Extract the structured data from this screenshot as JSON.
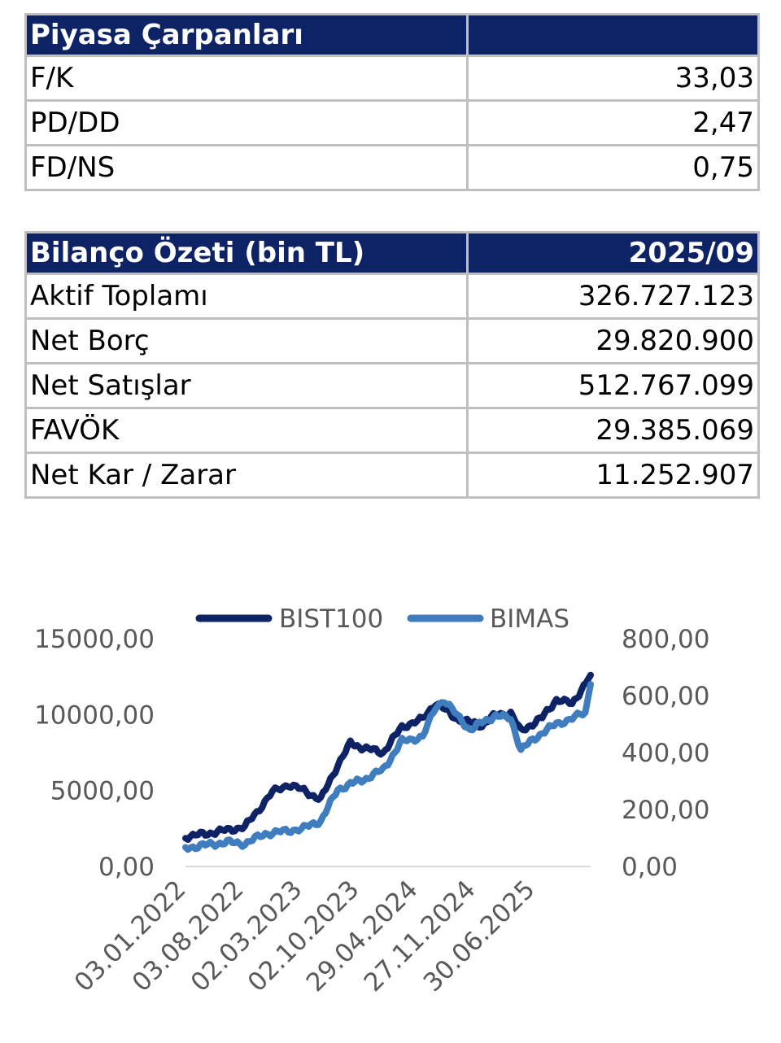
{
  "piyasa": {
    "title": "Piyasa Çarpanları",
    "rows": [
      {
        "label": "F/K",
        "value": "33,03"
      },
      {
        "label": "PD/DD",
        "value": "2,47"
      },
      {
        "label": "FD/NS",
        "value": "0,75"
      }
    ]
  },
  "bilanco": {
    "title": "Bilanço Özeti (bin TL)",
    "period": "2025/09",
    "rows": [
      {
        "label": "Aktif Toplamı",
        "value": "326.727.123"
      },
      {
        "label": "Net Borç",
        "value": "29.820.900"
      },
      {
        "label": "Net Satışlar",
        "value": "512.767.099"
      },
      {
        "label": "FAVÖK",
        "value": "29.385.069"
      },
      {
        "label": "Net Kar / Zarar",
        "value": "11.252.907"
      }
    ]
  },
  "chart_data": {
    "type": "line",
    "legend_position": "top",
    "grid": false,
    "x_ticks": [
      "03.01.2022",
      "03.08.2022",
      "02.03.2023",
      "02.10.2023",
      "29.04.2024",
      "27.11.2024",
      "30.06.2025"
    ],
    "y_left": {
      "ticks": [
        "0,00",
        "5000,00",
        "10000,00",
        "15000,00"
      ],
      "range": [
        0,
        15000
      ]
    },
    "y_right": {
      "ticks": [
        "0,00",
        "200,00",
        "400,00",
        "600,00",
        "800,00"
      ],
      "range": [
        0,
        800
      ]
    },
    "series": [
      {
        "name": "BIST100",
        "axis": "left",
        "color": "#0e2266",
        "points": [
          [
            "03.01.2022",
            1950
          ],
          [
            "15.03.2022",
            2150
          ],
          [
            "01.06.2022",
            2400
          ],
          [
            "03.08.2022",
            2600
          ],
          [
            "15.09.2022",
            3600
          ],
          [
            "10.11.2022",
            4900
          ],
          [
            "05.01.2023",
            5400
          ],
          [
            "02.03.2023",
            5000
          ],
          [
            "01.05.2023",
            4400
          ],
          [
            "01.07.2023",
            6700
          ],
          [
            "15.08.2023",
            8100
          ],
          [
            "02.10.2023",
            7800
          ],
          [
            "10.12.2023",
            7500
          ],
          [
            "15.02.2024",
            9200
          ],
          [
            "29.04.2024",
            9700
          ],
          [
            "15.06.2024",
            10800
          ],
          [
            "30.08.2024",
            9700
          ],
          [
            "27.11.2024",
            9300
          ],
          [
            "15.01.2025",
            10000
          ],
          [
            "10.03.2025",
            10100
          ],
          [
            "15.04.2025",
            8900
          ],
          [
            "30.06.2025",
            9800
          ],
          [
            "20.08.2025",
            11000
          ],
          [
            "15.10.2025",
            10700
          ],
          [
            "20.12.2025",
            12600
          ]
        ]
      },
      {
        "name": "BIMAS",
        "axis": "right",
        "color": "#3f7dbf",
        "points": [
          [
            "03.01.2022",
            65
          ],
          [
            "15.03.2022",
            75
          ],
          [
            "01.06.2022",
            85
          ],
          [
            "03.08.2022",
            80
          ],
          [
            "15.10.2022",
            115
          ],
          [
            "05.01.2023",
            125
          ],
          [
            "02.03.2023",
            135
          ],
          [
            "01.05.2023",
            160
          ],
          [
            "01.07.2023",
            270
          ],
          [
            "15.08.2023",
            290
          ],
          [
            "02.10.2023",
            305
          ],
          [
            "10.12.2023",
            340
          ],
          [
            "15.02.2024",
            440
          ],
          [
            "29.04.2024",
            455
          ],
          [
            "15.06.2024",
            560
          ],
          [
            "15.07.2024",
            585
          ],
          [
            "30.08.2024",
            530
          ],
          [
            "15.10.2024",
            480
          ],
          [
            "27.11.2024",
            505
          ],
          [
            "15.01.2025",
            530
          ],
          [
            "10.03.2025",
            520
          ],
          [
            "15.04.2025",
            410
          ],
          [
            "30.06.2025",
            470
          ],
          [
            "20.08.2025",
            500
          ],
          [
            "15.10.2025",
            520
          ],
          [
            "01.12.2025",
            540
          ],
          [
            "20.12.2025",
            640
          ]
        ]
      }
    ]
  }
}
